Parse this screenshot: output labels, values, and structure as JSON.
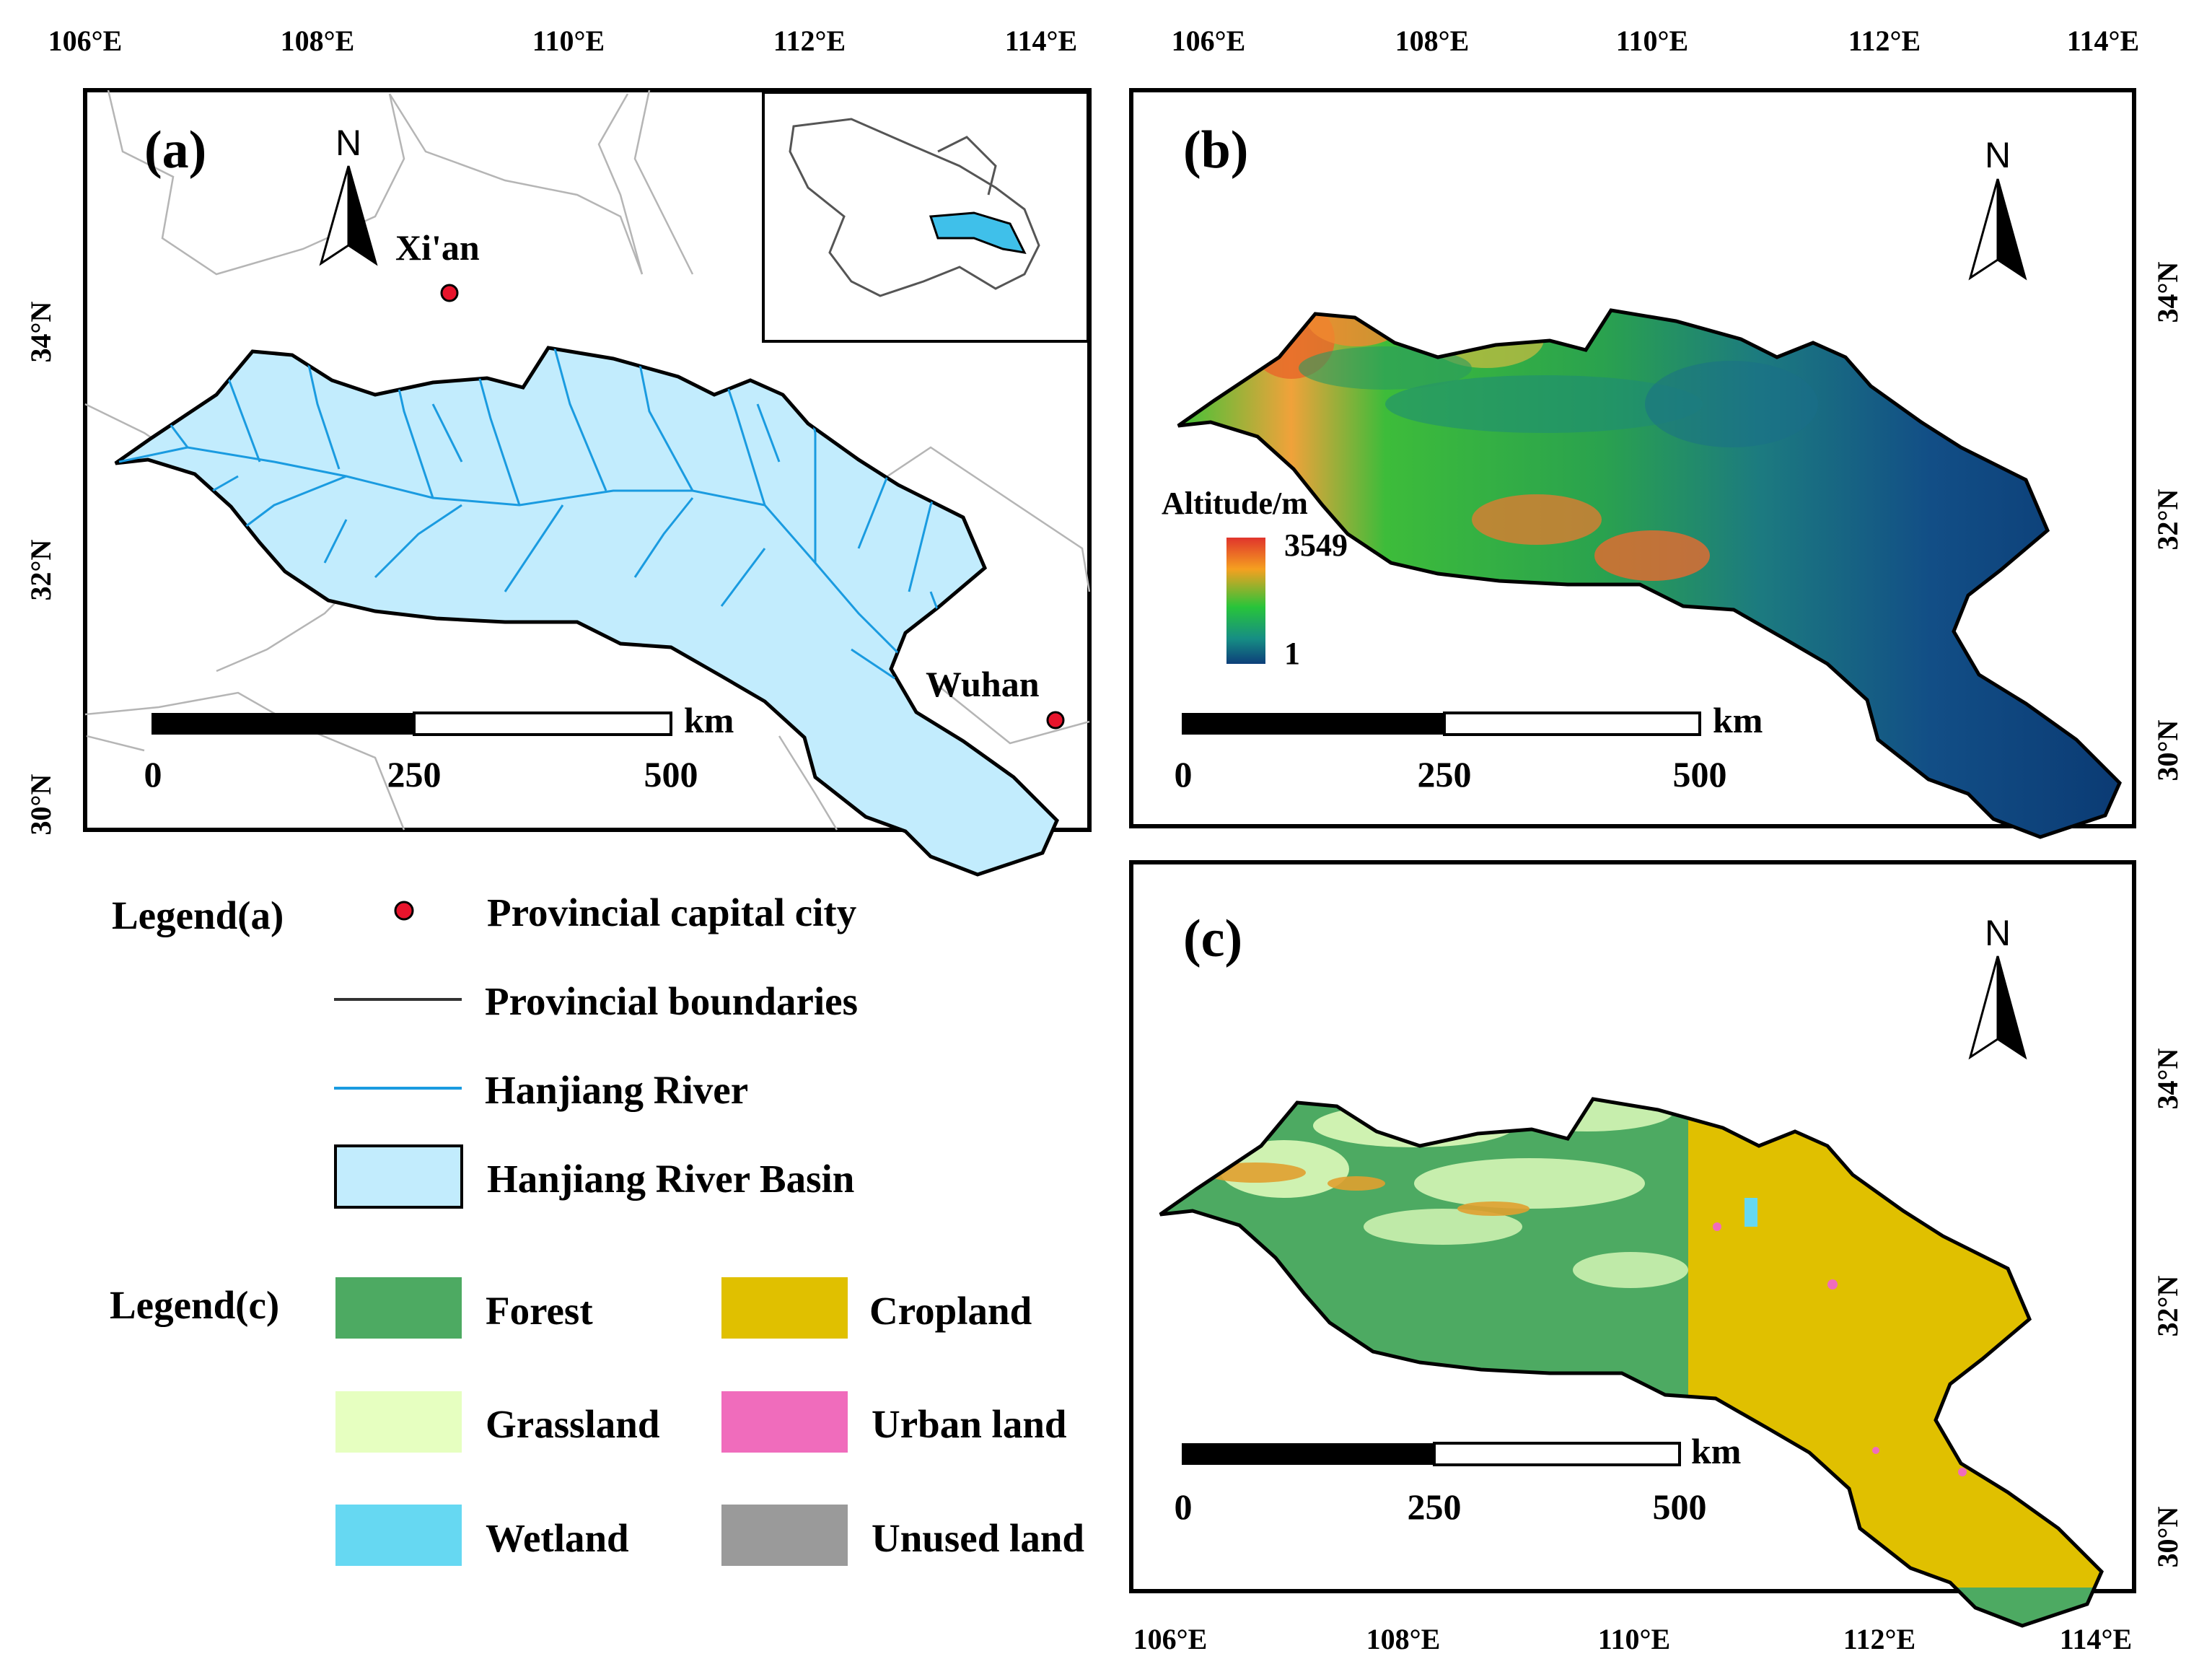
{
  "axes": {
    "lon_top": [
      "106°E",
      "108°E",
      "110°E",
      "112°E",
      "114°E"
    ],
    "lon_bottom": [
      "106°E",
      "108°E",
      "110°E",
      "112°E",
      "114°E"
    ],
    "lat": [
      "34°N",
      "32°N",
      "30°N"
    ]
  },
  "panel_a": {
    "label": "(a)",
    "north": "N",
    "cities": [
      {
        "name": "Xi'an"
      },
      {
        "name": "Wuhan"
      }
    ],
    "scale": {
      "ticks": [
        "0",
        "250",
        "500"
      ],
      "unit": "km"
    }
  },
  "panel_b": {
    "label": "(b)",
    "north": "N",
    "altitude_title": "Altitude/m",
    "altitude_max": "3549",
    "altitude_min": "1",
    "scale": {
      "ticks": [
        "0",
        "250",
        "500"
      ],
      "unit": "km"
    }
  },
  "panel_c": {
    "label": "(c)",
    "north": "N",
    "scale": {
      "ticks": [
        "0",
        "250",
        "500"
      ],
      "unit": "km"
    }
  },
  "legend_a": {
    "title": "Legend(a)",
    "items": [
      {
        "label": "Provincial capital city",
        "icon": "red-dot"
      },
      {
        "label": "Provincial boundaries",
        "icon": "dark-line"
      },
      {
        "label": "Hanjiang River",
        "icon": "blue-line"
      },
      {
        "label": "Hanjiang River Basin",
        "icon": "light-blue-box"
      }
    ]
  },
  "legend_c": {
    "title": "Legend(c)",
    "items": [
      {
        "label": "Forest",
        "color": "#4daa62"
      },
      {
        "label": "Cropland",
        "color": "#e0c000"
      },
      {
        "label": "Grassland",
        "color": "#e6ffc0"
      },
      {
        "label": "Urban land",
        "color": "#f06cbc"
      },
      {
        "label": "Wetland",
        "color": "#66d8f2"
      },
      {
        "label": "Unused land",
        "color": "#9a9a9a"
      }
    ]
  },
  "colors": {
    "basin_fill": "#c2ecfd",
    "river": "#1a9be0",
    "city_dot": "#e8142c",
    "forest": "#4daa62",
    "grassland": "#e6ffc0",
    "cropland": "#e0c000",
    "urban": "#f06cbc",
    "wetland": "#66d8f2"
  }
}
